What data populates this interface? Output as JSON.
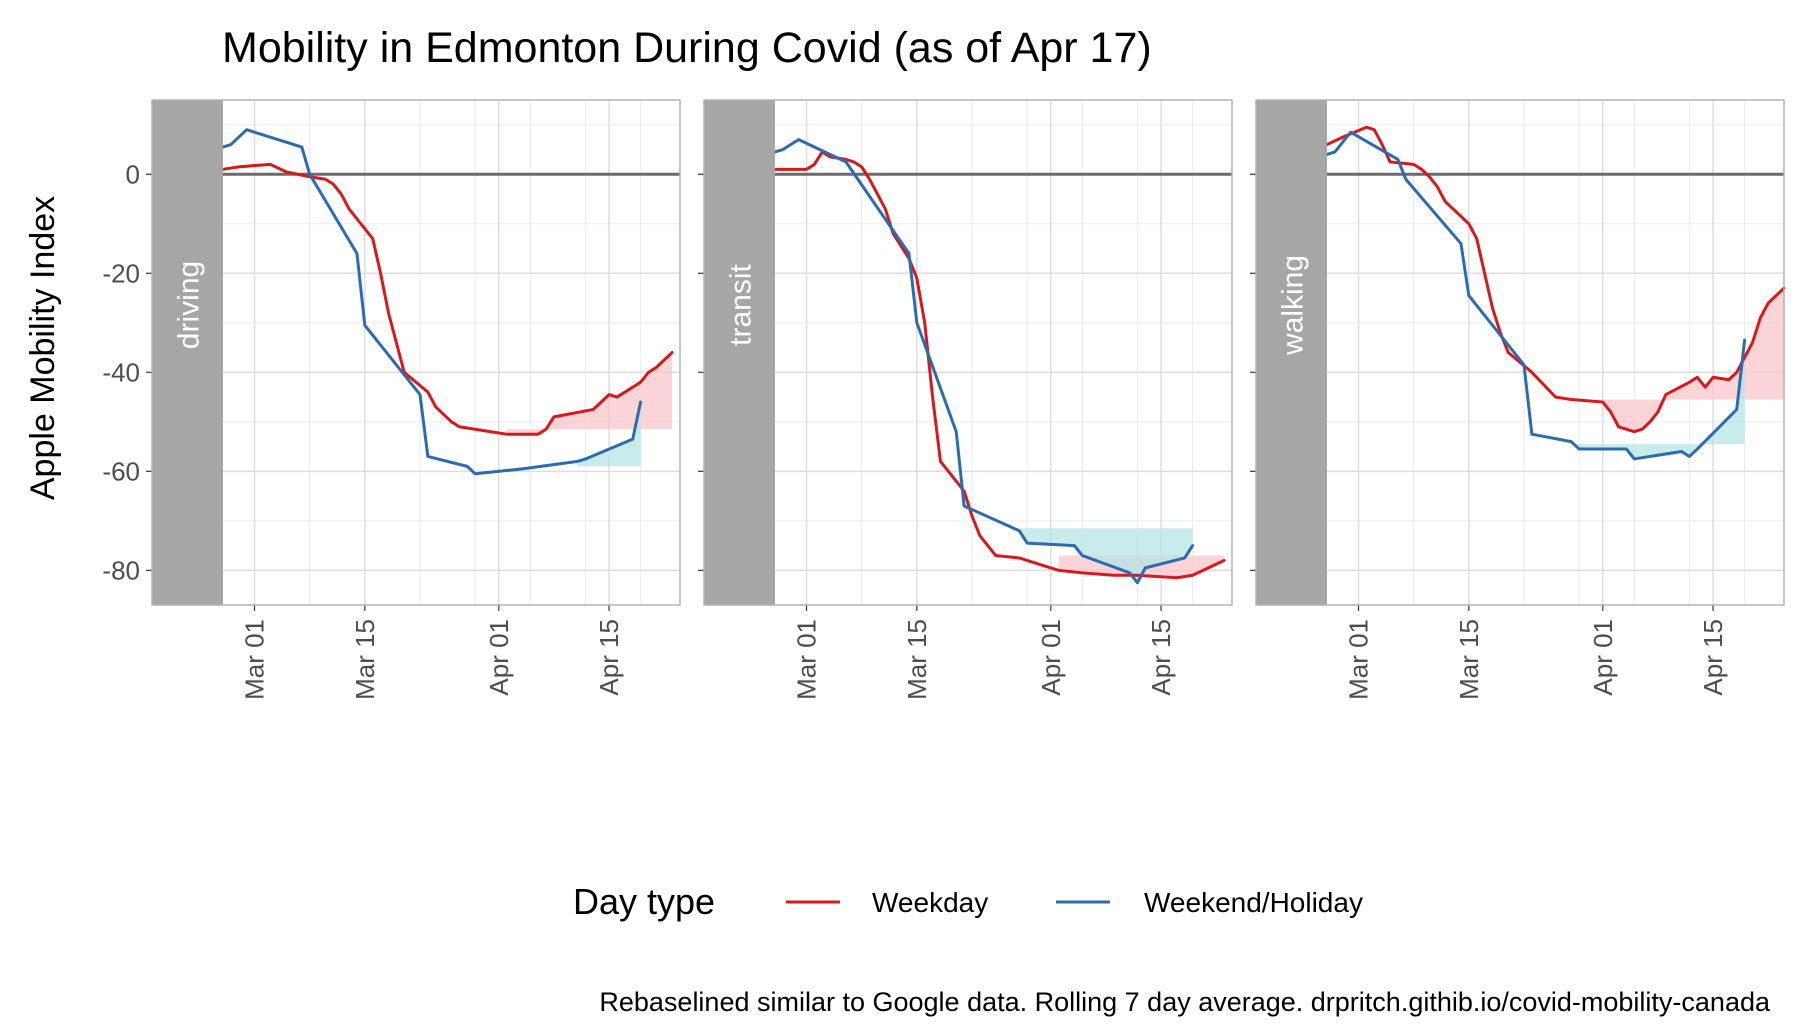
{
  "chart_data": {
    "type": "line",
    "title": "Mobility in Edmonton During Covid (as of Apr 17)",
    "ylabel": "Apple Mobility Index",
    "xlabel": "",
    "caption": "Rebaselined similar to Google data. Rolling 7 day average. drpritch.githib.io/covid-mobility-canada",
    "legend": {
      "title": "Day type",
      "position": "bottom"
    },
    "x_ticks": [
      "Mar 01",
      "Mar 15",
      "Apr 01",
      "Apr 15"
    ],
    "x_tick_dates": [
      "2020-03-01",
      "2020-03-15",
      "2020-04-01",
      "2020-04-15"
    ],
    "x_range": [
      "2020-02-26",
      "2020-04-24"
    ],
    "y_ticks": [
      0,
      -20,
      -40,
      -60,
      -80
    ],
    "ylim": [
      -87,
      15
    ],
    "grid": true,
    "colors": {
      "weekday": "#D7191C",
      "weekend": "#2B6CB0",
      "band_weekday": "#F8C5C8",
      "band_weekend": "#B6E6E6",
      "strip": "#A6A6A6"
    },
    "series_names": [
      "Weekday",
      "Weekend/Holiday"
    ],
    "panels": [
      {
        "label": "driving",
        "weekday": [
          [
            "2020-02-26",
            1
          ],
          [
            "2020-02-28",
            1.5
          ],
          [
            "2020-03-03",
            2
          ],
          [
            "2020-03-05",
            0.5
          ],
          [
            "2020-03-08",
            -0.5
          ],
          [
            "2020-03-10",
            -1
          ],
          [
            "2020-03-11",
            -2
          ],
          [
            "2020-03-12",
            -4
          ],
          [
            "2020-03-13",
            -7
          ],
          [
            "2020-03-16",
            -13
          ],
          [
            "2020-03-17",
            -20
          ],
          [
            "2020-03-18",
            -28
          ],
          [
            "2020-03-20",
            -40
          ],
          [
            "2020-03-23",
            -44
          ],
          [
            "2020-03-24",
            -47
          ],
          [
            "2020-03-26",
            -50
          ],
          [
            "2020-03-27",
            -51
          ],
          [
            "2020-03-31",
            -52
          ],
          [
            "2020-04-02",
            -52.5
          ],
          [
            "2020-04-06",
            -52.5
          ],
          [
            "2020-04-07",
            -51.5
          ],
          [
            "2020-04-08",
            -49
          ],
          [
            "2020-04-13",
            -47.5
          ],
          [
            "2020-04-14",
            -46
          ],
          [
            "2020-04-15",
            -44.5
          ],
          [
            "2020-04-16",
            -45
          ],
          [
            "2020-04-19",
            -42
          ],
          [
            "2020-04-20",
            -40
          ],
          [
            "2020-04-21",
            -39
          ],
          [
            "2020-04-23",
            -36
          ]
        ],
        "weekend": [
          [
            "2020-02-26",
            5.5
          ],
          [
            "2020-02-27",
            6
          ],
          [
            "2020-02-29",
            9
          ],
          [
            "2020-03-07",
            5.5
          ],
          [
            "2020-03-08",
            0
          ],
          [
            "2020-03-14",
            -16
          ],
          [
            "2020-03-15",
            -30.5
          ],
          [
            "2020-03-22",
            -44.5
          ],
          [
            "2020-03-23",
            -57
          ],
          [
            "2020-03-28",
            -59
          ],
          [
            "2020-03-29",
            -60.5
          ],
          [
            "2020-04-04",
            -59.5
          ],
          [
            "2020-04-11",
            -58
          ],
          [
            "2020-04-12",
            -57.5
          ],
          [
            "2020-04-18",
            -53.5
          ],
          [
            "2020-04-19",
            -46
          ]
        ],
        "band_weekday": {
          "from": "2020-04-01",
          "to": "2020-04-23",
          "baseline": -51.5
        },
        "band_weekend": {
          "from": "2020-04-11",
          "to": "2020-04-19",
          "baseline": -59
        }
      },
      {
        "label": "transit",
        "weekday": [
          [
            "2020-02-26",
            1
          ],
          [
            "2020-02-27",
            1
          ],
          [
            "2020-03-01",
            1
          ],
          [
            "2020-03-02",
            2
          ],
          [
            "2020-03-03",
            4.5
          ],
          [
            "2020-03-04",
            3.5
          ],
          [
            "2020-03-06",
            3
          ],
          [
            "2020-03-07",
            2.5
          ],
          [
            "2020-03-08",
            1.5
          ],
          [
            "2020-03-09",
            -1
          ],
          [
            "2020-03-10",
            -4
          ],
          [
            "2020-03-11",
            -7
          ],
          [
            "2020-03-12",
            -12
          ],
          [
            "2020-03-14",
            -17
          ],
          [
            "2020-03-15",
            -21
          ],
          [
            "2020-03-16",
            -30
          ],
          [
            "2020-03-17",
            -45
          ],
          [
            "2020-03-18",
            -58
          ],
          [
            "2020-03-19",
            -60
          ],
          [
            "2020-03-20",
            -62
          ],
          [
            "2020-03-21",
            -64
          ],
          [
            "2020-03-22",
            -69
          ],
          [
            "2020-03-23",
            -73
          ],
          [
            "2020-03-24",
            -75
          ],
          [
            "2020-03-25",
            -77
          ],
          [
            "2020-03-28",
            -77.5
          ],
          [
            "2020-03-31",
            -79
          ],
          [
            "2020-04-02",
            -80
          ],
          [
            "2020-04-05",
            -80.5
          ],
          [
            "2020-04-09",
            -81
          ],
          [
            "2020-04-12",
            -81
          ],
          [
            "2020-04-17",
            -81.5
          ],
          [
            "2020-04-19",
            -81
          ],
          [
            "2020-04-21",
            -79.5
          ],
          [
            "2020-04-23",
            -78
          ]
        ],
        "weekend": [
          [
            "2020-02-26",
            4.5
          ],
          [
            "2020-02-27",
            5
          ],
          [
            "2020-02-29",
            7
          ],
          [
            "2020-03-06",
            2.5
          ],
          [
            "2020-03-14",
            -16
          ],
          [
            "2020-03-15",
            -30
          ],
          [
            "2020-03-20",
            -52
          ],
          [
            "2020-03-21",
            -67
          ],
          [
            "2020-03-28",
            -72
          ],
          [
            "2020-03-29",
            -74.5
          ],
          [
            "2020-04-04",
            -75
          ],
          [
            "2020-04-05",
            -77
          ],
          [
            "2020-04-11",
            -80.5
          ],
          [
            "2020-04-12",
            -82.5
          ],
          [
            "2020-04-13",
            -79.5
          ],
          [
            "2020-04-18",
            -77.5
          ],
          [
            "2020-04-19",
            -75
          ]
        ],
        "band_weekday": {
          "from": "2020-04-01",
          "to": "2020-04-23",
          "baseline": -77
        },
        "band_weekend": {
          "from": "2020-03-28",
          "to": "2020-04-19",
          "baseline": -71.5
        }
      },
      {
        "label": "walking",
        "weekday": [
          [
            "2020-02-26",
            6
          ],
          [
            "2020-02-28",
            7.5
          ],
          [
            "2020-03-02",
            9.5
          ],
          [
            "2020-03-03",
            9
          ],
          [
            "2020-03-04",
            6
          ],
          [
            "2020-03-05",
            2.5
          ],
          [
            "2020-03-08",
            2
          ],
          [
            "2020-03-09",
            1
          ],
          [
            "2020-03-10",
            -0.5
          ],
          [
            "2020-03-11",
            -2.5
          ],
          [
            "2020-03-12",
            -5.5
          ],
          [
            "2020-03-13",
            -7
          ],
          [
            "2020-03-15",
            -10
          ],
          [
            "2020-03-16",
            -13
          ],
          [
            "2020-03-17",
            -20
          ],
          [
            "2020-03-18",
            -27
          ],
          [
            "2020-03-19",
            -32
          ],
          [
            "2020-03-20",
            -36
          ],
          [
            "2020-03-23",
            -40
          ],
          [
            "2020-03-26",
            -45
          ],
          [
            "2020-03-28",
            -45.5
          ],
          [
            "2020-04-01",
            -46
          ],
          [
            "2020-04-02",
            -48
          ],
          [
            "2020-04-03",
            -51
          ],
          [
            "2020-04-05",
            -52
          ],
          [
            "2020-04-06",
            -51.5
          ],
          [
            "2020-04-07",
            -50
          ],
          [
            "2020-04-08",
            -48
          ],
          [
            "2020-04-09",
            -44.5
          ],
          [
            "2020-04-12",
            -42
          ],
          [
            "2020-04-13",
            -41
          ],
          [
            "2020-04-14",
            -43
          ],
          [
            "2020-04-15",
            -41
          ],
          [
            "2020-04-17",
            -41.5
          ],
          [
            "2020-04-18",
            -40
          ],
          [
            "2020-04-20",
            -34
          ],
          [
            "2020-04-21",
            -29
          ],
          [
            "2020-04-22",
            -26
          ],
          [
            "2020-04-24",
            -23
          ]
        ],
        "weekend": [
          [
            "2020-02-26",
            4
          ],
          [
            "2020-02-27",
            4.5
          ],
          [
            "2020-02-29",
            8.5
          ],
          [
            "2020-03-06",
            3
          ],
          [
            "2020-03-07",
            -1
          ],
          [
            "2020-03-14",
            -14
          ],
          [
            "2020-03-15",
            -24.5
          ],
          [
            "2020-03-22",
            -38.5
          ],
          [
            "2020-03-23",
            -52.5
          ],
          [
            "2020-03-28",
            -54
          ],
          [
            "2020-03-29",
            -55.5
          ],
          [
            "2020-04-04",
            -55.5
          ],
          [
            "2020-04-05",
            -57.5
          ],
          [
            "2020-04-11",
            -56
          ],
          [
            "2020-04-12",
            -57
          ],
          [
            "2020-04-13",
            -55.5
          ],
          [
            "2020-04-18",
            -47.5
          ],
          [
            "2020-04-19",
            -33.5
          ]
        ],
        "band_weekday": {
          "from": "2020-04-01",
          "to": "2020-04-24",
          "baseline": -45.5
        },
        "band_weekend": {
          "from": "2020-03-28",
          "to": "2020-04-19",
          "baseline": -54.5
        }
      }
    ]
  }
}
